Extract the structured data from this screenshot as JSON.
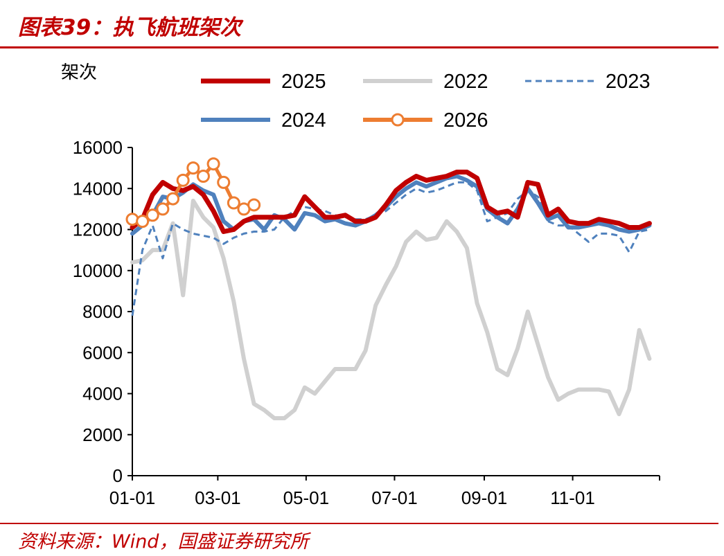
{
  "header": {
    "title": "图表39：执飞航班架次"
  },
  "footer": {
    "source": "资料来源：Wind，国盛证券研究所"
  },
  "chart_data": {
    "type": "line",
    "ylabel": "架次",
    "ylim": [
      0,
      16000
    ],
    "yticks": [
      "0",
      "2000",
      "4000",
      "6000",
      "8000",
      "10000",
      "12000",
      "14000",
      "16000"
    ],
    "xlim": [
      1,
      53
    ],
    "xticks": [
      {
        "label": "01-01",
        "x": 1
      },
      {
        "label": "03-01",
        "x": 9.43
      },
      {
        "label": "05-01",
        "x": 18.14
      },
      {
        "label": "07-01",
        "x": 26.86
      },
      {
        "label": "09-01",
        "x": 35.71
      },
      {
        "label": "11-01",
        "x": 44.43
      }
    ],
    "legend_position": "top",
    "grid": false,
    "series": [
      {
        "name": "2025",
        "color": "#c00000",
        "style": "solid",
        "width": 7,
        "marker": false,
        "x": [
          1,
          2,
          3,
          4,
          5,
          6,
          7,
          8,
          9,
          10,
          11,
          12,
          13,
          14,
          15,
          16,
          17,
          18,
          19,
          20,
          21,
          22,
          23,
          24,
          25,
          26,
          27,
          28,
          29,
          30,
          31,
          32,
          33,
          34,
          35,
          36,
          37,
          38,
          39,
          40,
          41,
          42,
          43,
          44,
          45,
          46,
          47,
          48,
          49,
          50,
          51,
          52
        ],
        "values": [
          12100,
          12500,
          13700,
          14300,
          14000,
          13900,
          14100,
          13700,
          12900,
          11900,
          12000,
          12400,
          12600,
          12600,
          12600,
          12600,
          12700,
          13600,
          13100,
          12600,
          12600,
          12700,
          12400,
          12400,
          12600,
          13200,
          13900,
          14300,
          14600,
          14400,
          14500,
          14600,
          14800,
          14800,
          14500,
          13100,
          12800,
          12900,
          12600,
          14300,
          14200,
          12700,
          13000,
          12400,
          12300,
          12300,
          12500,
          12400,
          12300,
          12100,
          12100,
          12300
        ]
      },
      {
        "name": "2022",
        "color": "#d0d0d0",
        "style": "solid",
        "width": 6,
        "marker": false,
        "x": [
          1,
          2,
          3,
          4,
          5,
          6,
          7,
          8,
          9,
          10,
          11,
          12,
          13,
          14,
          15,
          16,
          17,
          18,
          19,
          20,
          21,
          22,
          23,
          24,
          25,
          26,
          27,
          28,
          29,
          30,
          31,
          32,
          33,
          34,
          35,
          36,
          37,
          38,
          39,
          40,
          41,
          42,
          43,
          44,
          45,
          46,
          47,
          48,
          49,
          50,
          51,
          52
        ],
        "values": [
          10400,
          10500,
          11000,
          11000,
          12300,
          8800,
          13400,
          12600,
          12100,
          10600,
          8500,
          5700,
          3500,
          3200,
          2800,
          2800,
          3200,
          4300,
          4000,
          4600,
          5200,
          5200,
          5200,
          6100,
          8300,
          9300,
          10200,
          11400,
          11900,
          11500,
          11600,
          12400,
          11900,
          11100,
          8400,
          7000,
          5200,
          4900,
          6200,
          8000,
          6400,
          4800,
          3700,
          4000,
          4200,
          4200,
          4200,
          4100,
          3000,
          4200,
          7100,
          5700
        ]
      },
      {
        "name": "2023",
        "color": "#4f81bd",
        "style": "dashed",
        "width": 3,
        "marker": false,
        "x": [
          1,
          2,
          3,
          4,
          5,
          6,
          7,
          8,
          9,
          10,
          11,
          12,
          13,
          14,
          15,
          16,
          17,
          18,
          19,
          20,
          21,
          22,
          23,
          24,
          25,
          26,
          27,
          28,
          29,
          30,
          31,
          32,
          33,
          34,
          35,
          36,
          37,
          38,
          39,
          40,
          41,
          42,
          43,
          44,
          45,
          46,
          47,
          48,
          49,
          50,
          51,
          52
        ],
        "values": [
          7800,
          11000,
          12200,
          10600,
          12300,
          12000,
          11800,
          11700,
          11600,
          11300,
          11600,
          11800,
          11900,
          11900,
          12000,
          12600,
          12900,
          13100,
          13000,
          12900,
          12700,
          12600,
          12500,
          12500,
          12700,
          12900,
          13300,
          13700,
          14000,
          13800,
          13900,
          14100,
          14300,
          14300,
          13900,
          12400,
          12600,
          12800,
          13500,
          13900,
          13600,
          12400,
          12200,
          12200,
          11800,
          11400,
          11800,
          11800,
          11700,
          10900,
          11900,
          12000
        ]
      },
      {
        "name": "2024",
        "color": "#4f81bd",
        "style": "solid",
        "width": 6,
        "marker": false,
        "x": [
          1,
          2,
          3,
          4,
          5,
          6,
          7,
          8,
          9,
          10,
          11,
          12,
          13,
          14,
          15,
          16,
          17,
          18,
          19,
          20,
          21,
          22,
          23,
          24,
          25,
          26,
          27,
          28,
          29,
          30,
          31,
          32,
          33,
          34,
          35,
          36,
          37,
          38,
          39,
          40,
          41,
          42,
          43,
          44,
          45,
          46,
          47,
          48,
          49,
          50,
          51,
          52
        ],
        "values": [
          11800,
          12200,
          12700,
          13600,
          13500,
          13800,
          14200,
          13900,
          13700,
          12400,
          12000,
          12400,
          12500,
          12000,
          12700,
          12500,
          12000,
          12800,
          12700,
          12400,
          12500,
          12300,
          12200,
          12400,
          12700,
          13100,
          13600,
          14000,
          14300,
          14100,
          14300,
          14500,
          14600,
          14400,
          14100,
          13000,
          12600,
          12300,
          13000,
          14000,
          13300,
          12500,
          12700,
          12100,
          12100,
          12200,
          12300,
          12200,
          12000,
          11900,
          12000,
          12200
        ]
      },
      {
        "name": "2026",
        "color": "#ed7d31",
        "style": "solid",
        "width": 5,
        "marker": true,
        "x": [
          1,
          2,
          3,
          4,
          5,
          6,
          7,
          8,
          9,
          10,
          11,
          12,
          13
        ],
        "values": [
          12500,
          12400,
          12700,
          13000,
          13500,
          14400,
          15000,
          14600,
          15200,
          14300,
          13300,
          13000,
          13200
        ]
      }
    ]
  }
}
